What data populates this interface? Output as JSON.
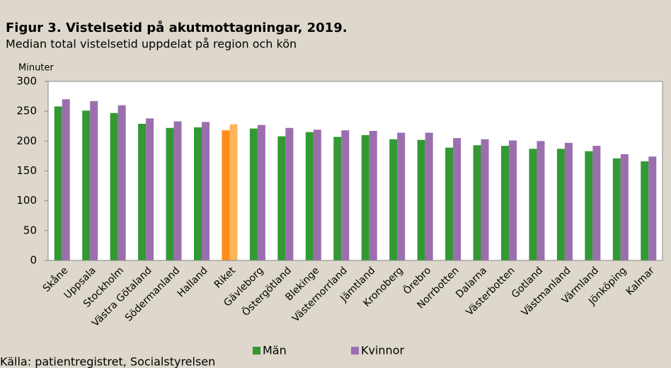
{
  "chart_data": {
    "type": "bar",
    "title": "Figur 3. Vistelsetid på akutmottagningar, 2019.",
    "subtitle": "Median total vistelsetid uppdelat på region och kön",
    "y_label": "Minuter",
    "source": "Källa: patientregistret, Socialstyrelsen",
    "categories": [
      "Skåne",
      "Uppsala",
      "Stockholm",
      "Västra Götaland",
      "Södermanland",
      "Halland",
      "Riket",
      "Gävleborg",
      "Östergötland",
      "Blekinge",
      "Västernorrland",
      "Jämtland",
      "Kronoberg",
      "Örebro",
      "Norrbotten",
      "Dalarna",
      "Västerbotten",
      "Gotland",
      "Västmanland",
      "Värmland",
      "Jönköping",
      "Kalmar"
    ],
    "highlight_category": "Riket",
    "series": [
      {
        "name": "Män",
        "color": "#339933",
        "highlight_color": "#ff8c1a",
        "values": [
          258,
          251,
          247,
          229,
          222,
          223,
          218,
          221,
          208,
          215,
          207,
          210,
          203,
          202,
          189,
          193,
          192,
          187,
          187,
          183,
          171,
          166
        ]
      },
      {
        "name": "Kvinnor",
        "color": "#9b6fae",
        "highlight_color": "#ffb45a",
        "values": [
          270,
          267,
          260,
          238,
          233,
          232,
          228,
          227,
          222,
          219,
          218,
          217,
          214,
          214,
          205,
          203,
          201,
          200,
          197,
          192,
          178,
          174
        ]
      }
    ],
    "ylim": [
      0,
      300
    ],
    "yticks": [
      0,
      50,
      100,
      150,
      200,
      250,
      300
    ],
    "grid": false
  }
}
